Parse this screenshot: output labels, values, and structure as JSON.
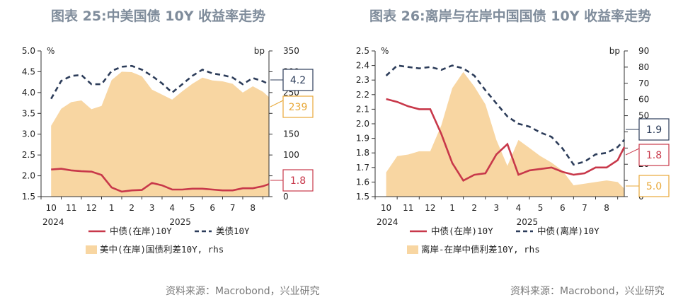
{
  "titles": {
    "left": "图表 25:中美国债 10Y 收益率走势",
    "right": "图表 26:离岸与在岸中国国债 10Y 收益率走势"
  },
  "sources": {
    "left": "资料来源：Macrobond，兴业研究",
    "right": "资料来源：Macrobond，兴业研究"
  },
  "colors": {
    "cn": "#c8384a",
    "us": "#2d3d5a",
    "spread": "#f8d6a2",
    "spread_border": "#e8a838"
  },
  "chart_data": [
    {
      "type": "line",
      "title": "图表 25:中美国债 10Y 收益率走势",
      "x_ticks": [
        "10",
        "11",
        "12",
        "1",
        "2",
        "3",
        "4",
        "5",
        "6",
        "7",
        "8"
      ],
      "year_labels": [
        "2024",
        "2025"
      ],
      "y_left": {
        "unit": "%",
        "min": 1.5,
        "max": 5.0,
        "ticks": [
          "5.0",
          "4.5",
          "4.0",
          "3.5",
          "3.0",
          "2.5",
          "2.0",
          "1.5"
        ]
      },
      "y_right": {
        "unit": "bp",
        "min": 0,
        "max": 350,
        "ticks": [
          "350",
          "300",
          "250",
          "200",
          "150",
          "100",
          "50",
          "0"
        ]
      },
      "legend": [
        "中债(在岸)10Y",
        "美债10Y",
        "美中(在岸)国债利差10Y, rhs"
      ],
      "x": [
        0,
        0.5,
        1,
        1.5,
        2,
        2.5,
        3,
        3.5,
        4,
        4.5,
        5,
        5.5,
        6,
        6.5,
        7,
        7.5,
        8,
        8.5,
        9,
        9.5,
        10,
        10.5,
        10.8
      ],
      "series": [
        {
          "name": "中债(在岸)10Y",
          "axis": "left",
          "values": [
            2.15,
            2.17,
            2.13,
            2.11,
            2.1,
            2.02,
            1.72,
            1.62,
            1.65,
            1.66,
            1.83,
            1.77,
            1.67,
            1.67,
            1.69,
            1.69,
            1.67,
            1.65,
            1.65,
            1.7,
            1.7,
            1.75,
            1.8
          ]
        },
        {
          "name": "美债10Y",
          "axis": "left",
          "values": [
            3.85,
            4.28,
            4.4,
            4.42,
            4.2,
            4.2,
            4.52,
            4.62,
            4.64,
            4.55,
            4.4,
            4.22,
            4.0,
            4.2,
            4.4,
            4.55,
            4.46,
            4.42,
            4.36,
            4.2,
            4.35,
            4.27,
            4.2
          ]
        },
        {
          "name": "美中(在岸)国债利差10Y, rhs",
          "axis": "right",
          "values": [
            170,
            211,
            227,
            231,
            210,
            218,
            280,
            300,
            299,
            289,
            257,
            245,
            233,
            253,
            271,
            286,
            279,
            277,
            271,
            250,
            265,
            252,
            239
          ]
        }
      ],
      "callouts": [
        {
          "label": "4.2",
          "series": "美债10Y"
        },
        {
          "label": "239",
          "series": "美中(在岸)国债利差10Y, rhs"
        },
        {
          "label": "1.8",
          "series": "中债(在岸)10Y"
        }
      ]
    },
    {
      "type": "line",
      "title": "图表 26:离岸与在岸中国国债 10Y 收益率走势",
      "x_ticks": [
        "10",
        "11",
        "12",
        "1",
        "2",
        "3",
        "4",
        "5",
        "6",
        "7",
        "8"
      ],
      "year_labels": [
        "2024",
        "2025"
      ],
      "y_left": {
        "unit": "%",
        "min": 1.5,
        "max": 2.5,
        "ticks": [
          "2.5",
          "2.4",
          "2.3",
          "2.2",
          "2.1",
          "2.0",
          "1.9",
          "1.8",
          "1.7",
          "1.6",
          "1.5"
        ]
      },
      "y_right": {
        "unit": "bp",
        "min": 0,
        "max": 90,
        "ticks": [
          "90",
          "80",
          "70",
          "60",
          "50",
          "40",
          "30",
          "20",
          "10",
          "0"
        ]
      },
      "legend": [
        "中债(在岸)10Y",
        "中债(离岸)10Y",
        "离岸-在岸中债利差10Y, rhs"
      ],
      "x": [
        0,
        0.5,
        1,
        1.5,
        2,
        2.5,
        3,
        3.5,
        4,
        4.5,
        5,
        5.5,
        6,
        6.5,
        7,
        7.5,
        8,
        8.5,
        9,
        9.5,
        10,
        10.5,
        10.8
      ],
      "series": [
        {
          "name": "中债(在岸)10Y",
          "axis": "left",
          "values": [
            2.17,
            2.15,
            2.12,
            2.1,
            2.1,
            1.93,
            1.73,
            1.61,
            1.65,
            1.66,
            1.79,
            1.86,
            1.65,
            1.68,
            1.69,
            1.7,
            1.67,
            1.65,
            1.66,
            1.7,
            1.7,
            1.75,
            1.84
          ]
        },
        {
          "name": "中债(离岸)10Y",
          "axis": "left",
          "values": [
            2.33,
            2.4,
            2.39,
            2.38,
            2.39,
            2.37,
            2.4,
            2.38,
            2.33,
            2.23,
            2.14,
            2.05,
            2.0,
            1.98,
            1.94,
            1.91,
            1.83,
            1.72,
            1.74,
            1.79,
            1.8,
            1.84,
            1.89
          ]
        },
        {
          "name": "离岸-在岸中债利差10Y, rhs",
          "axis": "right",
          "values": [
            15,
            25,
            26,
            28,
            28,
            44,
            67,
            77,
            68,
            57,
            35,
            19,
            35,
            30,
            25,
            21,
            16,
            7,
            8,
            9,
            10,
            9,
            5
          ]
        }
      ],
      "callouts": [
        {
          "label": "1.9",
          "series": "中债(离岸)10Y"
        },
        {
          "label": "1.8",
          "series": "中债(在岸)10Y"
        },
        {
          "label": "5.0",
          "series": "离岸-在岸中债利差10Y, rhs"
        }
      ]
    }
  ]
}
